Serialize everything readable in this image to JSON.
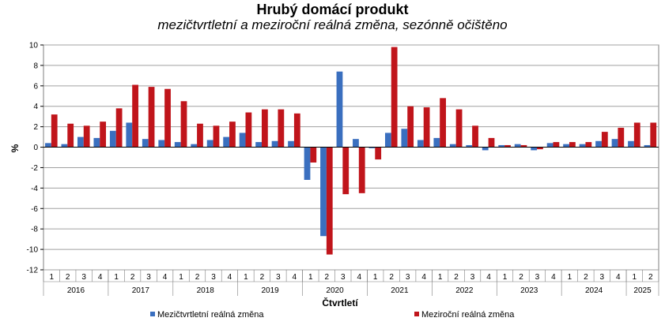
{
  "chart_data": {
    "type": "bar",
    "title": "Hrubý domácí produkt",
    "subtitle": "mezičtvrtletní a meziroční reálná změna, sezónně očištěno",
    "ylabel": "%",
    "xlabel": "Čtvrtletí",
    "ylim": [
      -12,
      10
    ],
    "yticks": [
      10,
      8,
      6,
      4,
      2,
      0,
      -2,
      -4,
      -6,
      -8,
      -10,
      -12
    ],
    "grid": true,
    "legend_position": "bottom",
    "quarter_labels": [
      "1",
      "2",
      "3",
      "4",
      "1",
      "2",
      "3",
      "4",
      "1",
      "2",
      "3",
      "4",
      "1",
      "2",
      "3",
      "4",
      "1",
      "2",
      "3",
      "4",
      "1",
      "2",
      "3",
      "4",
      "1",
      "2",
      "3",
      "4",
      "1",
      "2",
      "3",
      "4",
      "1",
      "2",
      "3",
      "4",
      "1",
      "2"
    ],
    "years": [
      {
        "label": "2016",
        "count": 4
      },
      {
        "label": "2017",
        "count": 4
      },
      {
        "label": "2018",
        "count": 4
      },
      {
        "label": "2019",
        "count": 4
      },
      {
        "label": "2020",
        "count": 4
      },
      {
        "label": "2021",
        "count": 4
      },
      {
        "label": "2022",
        "count": 4
      },
      {
        "label": "2023",
        "count": 4
      },
      {
        "label": "2024",
        "count": 4
      },
      {
        "label": "2025",
        "count": 2
      }
    ],
    "series": [
      {
        "name": "Mezičtvrtletní reálná změna",
        "color": "#3a6fbf",
        "values": [
          0.4,
          0.3,
          1.0,
          0.9,
          1.6,
          2.4,
          0.8,
          0.7,
          0.5,
          0.3,
          0.7,
          1.0,
          1.4,
          0.5,
          0.6,
          0.6,
          -3.2,
          -8.7,
          7.4,
          0.8,
          -0.1,
          1.4,
          1.8,
          0.7,
          0.9,
          0.3,
          0.2,
          -0.3,
          0.2,
          0.3,
          -0.3,
          0.4,
          0.3,
          0.3,
          0.6,
          0.8,
          0.6,
          0.2
        ]
      },
      {
        "name": "Meziroční reálná změna",
        "color": "#c0151b",
        "values": [
          3.2,
          2.3,
          2.1,
          2.5,
          3.8,
          6.1,
          5.9,
          5.7,
          4.5,
          2.3,
          2.1,
          2.5,
          3.4,
          3.7,
          3.7,
          3.3,
          -1.5,
          -10.5,
          -4.6,
          -4.5,
          -1.2,
          9.8,
          4.0,
          3.9,
          4.8,
          3.7,
          2.1,
          0.9,
          0.2,
          0.2,
          -0.2,
          0.5,
          0.5,
          0.5,
          1.5,
          1.9,
          2.4,
          2.4
        ]
      }
    ]
  }
}
